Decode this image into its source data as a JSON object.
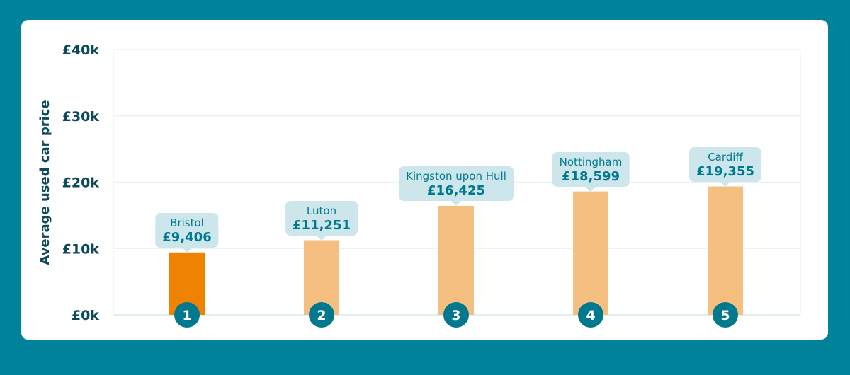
{
  "chart_data": {
    "type": "bar",
    "title": "",
    "xlabel": "",
    "ylabel": "Average used car price",
    "ylim": [
      0,
      40000
    ],
    "yticks": [
      0,
      10000,
      20000,
      30000,
      40000
    ],
    "ytick_labels": [
      "£0k",
      "£10k",
      "£20k",
      "£30k",
      "£40k"
    ],
    "grid": true,
    "categories": [
      "Bristol",
      "Luton",
      "Kingston upon Hull",
      "Nottingham",
      "Cardiff"
    ],
    "ranks": [
      "1",
      "2",
      "3",
      "4",
      "5"
    ],
    "values": [
      9406,
      11251,
      16425,
      18599,
      19355
    ],
    "value_labels": [
      "£9,406",
      "£11,251",
      "£16,425",
      "£18,599",
      "£19,355"
    ],
    "highlight_index": 0,
    "colors": {
      "highlight": "#ef8200",
      "bar": "#f5c07f",
      "badge": "#00798f",
      "tooltip": "#cde6ec",
      "background": "#00829a"
    }
  }
}
